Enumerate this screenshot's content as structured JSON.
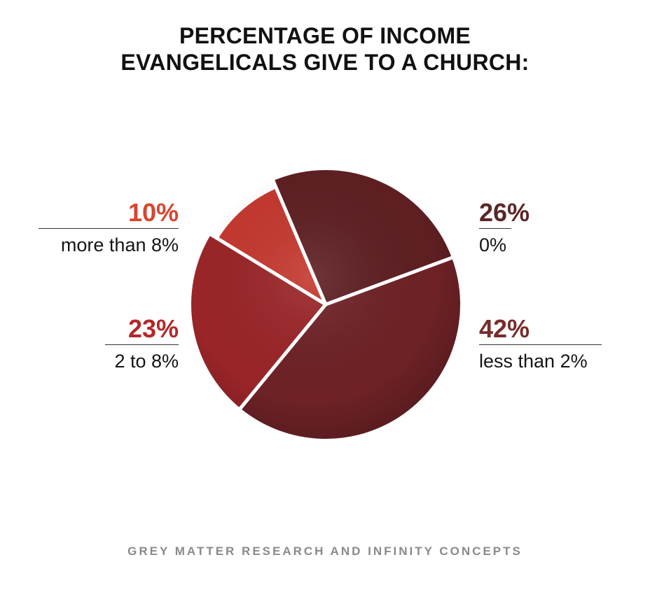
{
  "title": {
    "line1": "PERCENTAGE OF INCOME",
    "line2": "EVANGELICALS GIVE TO A CHURCH:"
  },
  "chart_data": {
    "type": "pie",
    "slices": [
      {
        "label": "0%",
        "value": 26,
        "display": "26%",
        "color": "#5e1f22"
      },
      {
        "label": "less than 2%",
        "value": 42,
        "display": "42%",
        "color": "#6e2226"
      },
      {
        "label": "2 to 8%",
        "value": 23,
        "display": "23%",
        "color": "#9a2528"
      },
      {
        "label": "more than 8%",
        "value": 10,
        "display": "10%",
        "color": "#c4382e"
      }
    ]
  },
  "labels": {
    "more_than_8": {
      "pct": "10%",
      "desc": "more than 8%",
      "color": "#d9442f"
    },
    "two_to_8": {
      "pct": "23%",
      "desc": "2 to 8%",
      "color": "#b3282b"
    },
    "zero": {
      "pct": "26%",
      "desc": "0%",
      "color": "#5b2626"
    },
    "less_than_2": {
      "pct": "42%",
      "desc": "less than 2%",
      "color": "#7a2a2c"
    }
  },
  "footer": "GREY MATTER RESEARCH AND INFINITY CONCEPTS"
}
